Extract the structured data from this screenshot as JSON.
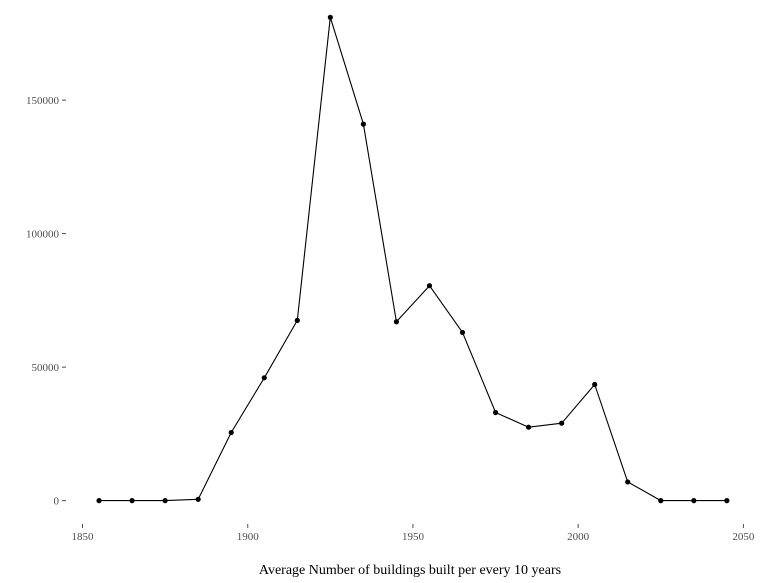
{
  "chart_data": {
    "type": "line",
    "title": "",
    "xlabel": "Average Number of buildings built per every 10 years",
    "ylabel": "",
    "xlim": [
      1845,
      2052
    ],
    "ylim": [
      -8000,
      183000
    ],
    "x_ticks": [
      1850,
      1900,
      1950,
      2000,
      2050
    ],
    "x_tick_labels": [
      "1850",
      "1900",
      "1950",
      "2000",
      "2050"
    ],
    "y_ticks": [
      0,
      50000,
      100000,
      150000
    ],
    "y_tick_labels": [
      "0",
      "50000",
      "100000",
      "150000"
    ],
    "grid": false,
    "legend": "none",
    "line_color": "#000000",
    "series": [
      {
        "x": [
          1855,
          1865,
          1875,
          1885,
          1895,
          1905,
          1915,
          1925,
          1935,
          1945,
          1955,
          1965,
          1975,
          1985,
          1995,
          2005,
          2015,
          2025,
          2035,
          2045
        ],
        "values": [
          0,
          0,
          0,
          500,
          25500,
          46000,
          67500,
          181000,
          141000,
          67000,
          80500,
          63000,
          33000,
          27500,
          29000,
          43500,
          7000,
          0,
          0,
          0
        ]
      }
    ]
  }
}
